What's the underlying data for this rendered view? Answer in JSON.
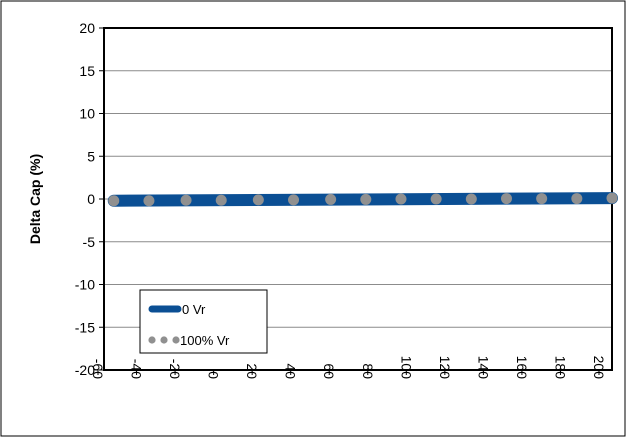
{
  "chart_data": {
    "type": "line",
    "title": "",
    "xlabel": "",
    "ylabel": "Delta Cap (%)",
    "xlim": [
      -60,
      200
    ],
    "ylim": [
      -20,
      20
    ],
    "x_ticks": [
      -60,
      -40,
      -20,
      0,
      20,
      40,
      60,
      80,
      100,
      120,
      140,
      160,
      180,
      200
    ],
    "y_ticks": [
      20,
      15,
      10,
      5,
      0,
      -5,
      -10,
      -15,
      -20
    ],
    "grid": true,
    "legend": "bottom-left",
    "series": [
      {
        "name": "0 Vr",
        "color": "#0b4f94",
        "style": "thick-line",
        "x": [
          -55,
          200
        ],
        "y": [
          -0.2,
          0.1
        ]
      },
      {
        "name": "100% Vr",
        "color": "#909090",
        "style": "dots",
        "x": [
          -55,
          -37,
          -18,
          0,
          19,
          37,
          56,
          74,
          92,
          110,
          128,
          146,
          164,
          182,
          200
        ],
        "y": [
          -0.2,
          -0.2,
          -0.15,
          -0.15,
          -0.1,
          -0.1,
          -0.05,
          -0.05,
          0,
          0,
          0,
          0.05,
          0.05,
          0.05,
          0.1
        ]
      }
    ]
  }
}
